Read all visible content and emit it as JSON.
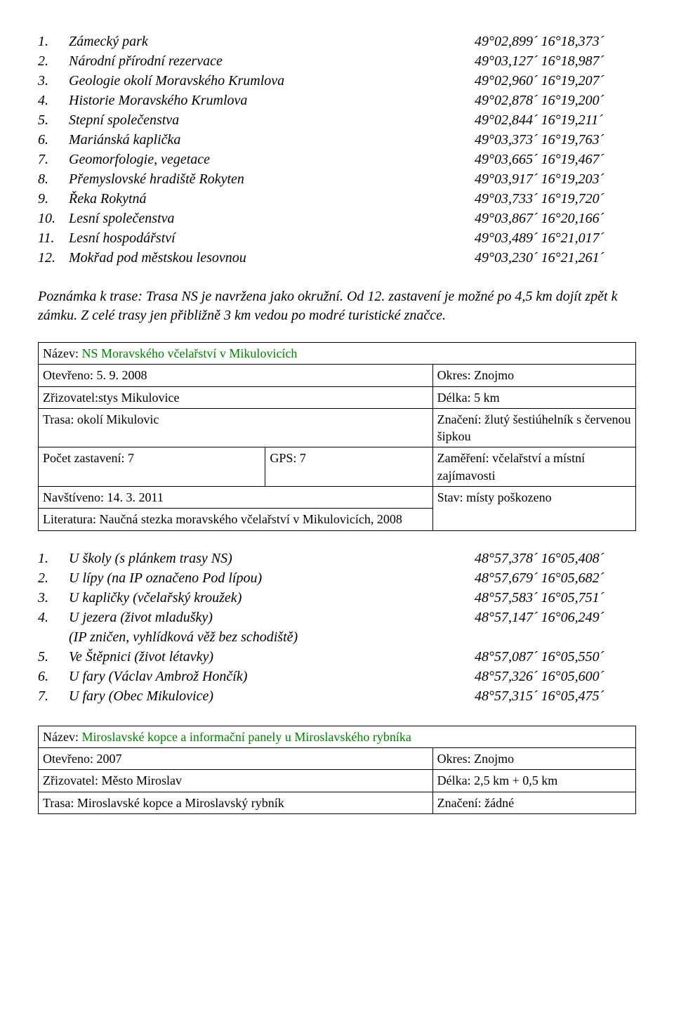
{
  "stops1": [
    {
      "num": "1.",
      "label": "Zámecký park",
      "coord": "49°02,899´ 16°18,373´"
    },
    {
      "num": "2.",
      "label": "Národní přírodní rezervace",
      "coord": "49°03,127´ 16°18,987´"
    },
    {
      "num": "3.",
      "label": "Geologie okolí Moravského Krumlova",
      "coord": "49°02,960´ 16°19,207´"
    },
    {
      "num": "4.",
      "label": "Historie Moravského Krumlova",
      "coord": "49°02,878´ 16°19,200´"
    },
    {
      "num": "5.",
      "label": "Stepní společenstva",
      "coord": "49°02,844´ 16°19,211´"
    },
    {
      "num": "6.",
      "label": "Mariánská kaplička",
      "coord": "49°03,373´ 16°19,763´"
    },
    {
      "num": "7.",
      "label": "Geomorfologie, vegetace",
      "coord": "49°03,665´ 16°19,467´"
    },
    {
      "num": "8.",
      "label": "Přemyslovské hradiště Rokyten",
      "coord": "49°03,917´ 16°19,203´"
    },
    {
      "num": "9.",
      "label": "Řeka Rokytná",
      "coord": "49°03,733´ 16°19,720´"
    },
    {
      "num": "10.",
      "label": "Lesní společenstva",
      "coord": "49°03,867´ 16°20,166´"
    },
    {
      "num": "11.",
      "label": "Lesní hospodářství",
      "coord": "49°03,489´ 16°21,017´"
    },
    {
      "num": "12.",
      "label": "Mokřad pod městskou lesovnou",
      "coord": "49°03,230´ 16°21,261´"
    }
  ],
  "note1": "Poznámka k trase: Trasa NS je navržena jako okružní. Od 12. zastavení je možné po 4,5 km dojít zpět k zámku. Z celé trasy jen přibližně 3 km vedou po modré turistické značce.",
  "table1": {
    "title_label": "Název: ",
    "title_name": "NS Moravského včelařství v Mikulovicích",
    "opened": "Otevřeno: 5. 9. 2008",
    "okres": "Okres: Znojmo",
    "zriz": "Zřizovatel:stys Mikulovice",
    "delka": "Délka: 5 km",
    "trasa": "Trasa: okolí Mikulovic",
    "znaceni": "Značení: žlutý šestiúhelník s červenou šipkou",
    "pocet": "Počet zastavení: 7",
    "gps": "GPS: 7",
    "zamereni": "Zaměření: včelařství a místní zajímavosti",
    "navst": "Navštíveno: 14. 3. 2011",
    "stav": "Stav: místy poškozeno",
    "lit": "Literatura: Naučná stezka moravského včelařství v Mikulovicích, 2008"
  },
  "stops2": [
    {
      "num": "1.",
      "label": "U školy (s plánkem trasy NS)",
      "coord": "48°57,378´ 16°05,408´"
    },
    {
      "num": "2.",
      "label": "U lípy (na IP označeno Pod lípou)",
      "coord": "48°57,679´ 16°05,682´"
    },
    {
      "num": "3.",
      "label": "U kapličky (včelařský kroužek)",
      "coord": "48°57,583´ 16°05,751´"
    },
    {
      "num": "4.",
      "label": "U jezera (život mladušky)",
      "coord": "48°57,147´ 16°06,249´"
    },
    {
      "num": "",
      "label": "(IP zničen, vyhlídková věž bez schodiště)",
      "coord": ""
    },
    {
      "num": "5.",
      "label": "Ve Štěpnici (život létavky)",
      "coord": "48°57,087´ 16°05,550´"
    },
    {
      "num": "6.",
      "label": "U fary (Václav Ambrož Hončík)",
      "coord": "48°57,326´ 16°05,600´"
    },
    {
      "num": "7.",
      "label": "U fary (Obec Mikulovice)",
      "coord": "48°57,315´ 16°05,475´"
    }
  ],
  "table2": {
    "title_label": "Název: ",
    "title_name": "Miroslavské kopce a informační panely u Miroslavského rybníka",
    "opened": "Otevřeno: 2007",
    "okres": "Okres: Znojmo",
    "zriz": "Zřizovatel: Město Miroslav",
    "delka": "Délka: 2,5 km + 0,5 km",
    "trasa": "Trasa: Miroslavské kopce a Miroslavský rybník",
    "znaceni": "Značení: žádné"
  }
}
